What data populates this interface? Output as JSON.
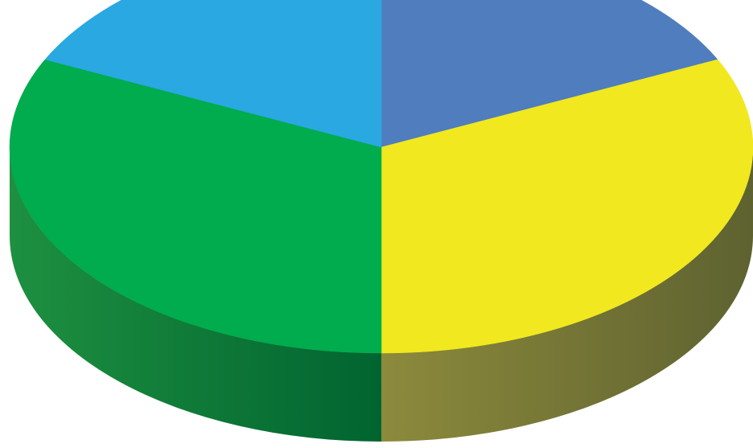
{
  "chart_data": {
    "type": "pie",
    "style": "3d",
    "title": "",
    "legend": "none",
    "start_angle_deg": 0,
    "direction": "clockwise",
    "slices": [
      {
        "value": 18,
        "color": "#4F7DBE",
        "side_dark": "#3A5C8C"
      },
      {
        "value": 32,
        "color": "#F1E81F",
        "side_dark": "#5E6230",
        "side_light": "#8C8A3C"
      },
      {
        "value": 32,
        "color": "#00AC4D",
        "side_dark": "#006430",
        "side_light": "#1E9040"
      },
      {
        "value": 18,
        "color": "#29A8E2",
        "side_dark": "#1A6E95"
      }
    ]
  }
}
